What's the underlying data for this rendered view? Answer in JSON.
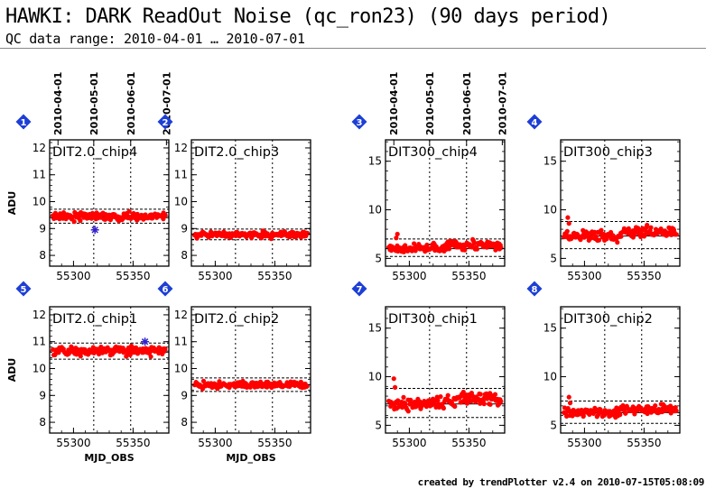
{
  "header": {
    "title": "HAWKI: DARK ReadOut Noise (qc_ron23) (90 days period)",
    "range": "QC data range: 2010-04-01 … 2010-07-01"
  },
  "credit": "created by trendPlotter v2.4 on 2010-07-15T05:08:09",
  "colors": {
    "points": "#ff0000",
    "outlier": "#3322cc",
    "badge": "#1d3fd6",
    "ref_line": "#000000"
  },
  "icons": {
    "badge": "diamond-number-icon",
    "outlier": "asterisk-marker-icon"
  },
  "chart_data": [
    {
      "type": "scatter",
      "panel": 1,
      "title": "DIT2.0_chip4",
      "xlabel": "",
      "ylabel": "ADU",
      "xlim": [
        55280,
        55380
      ],
      "ylim": [
        7.6,
        12.3
      ],
      "yticks": [
        8,
        9,
        10,
        11,
        12
      ],
      "xticks": [
        55300,
        55350
      ],
      "date_ticks": [
        "2010-04-01",
        "2010-05-01",
        "2010-06-01",
        "2010-07-01"
      ],
      "date_tick_mjd": [
        55287,
        55317,
        55348,
        55378
      ],
      "median": 9.45,
      "band": [
        9.2,
        9.72
      ],
      "noise": 0.1,
      "jumps": [],
      "extremes": [],
      "outliers": [
        {
          "x": 55318,
          "y": 8.95
        }
      ]
    },
    {
      "type": "scatter",
      "panel": 2,
      "title": "DIT2.0_chip3",
      "xlabel": "",
      "ylabel": "",
      "xlim": [
        55280,
        55380
      ],
      "ylim": [
        7.6,
        12.3
      ],
      "yticks": [
        8,
        9,
        10,
        11,
        12
      ],
      "xticks": [
        55300,
        55350
      ],
      "date_ticks": [],
      "date_tick_mjd": [],
      "median": 8.78,
      "band": [
        8.58,
        8.98
      ],
      "noise": 0.07,
      "jumps": [],
      "extremes": [],
      "outliers": []
    },
    {
      "type": "scatter",
      "panel": 3,
      "title": "DIT300_chip4",
      "xlabel": "",
      "ylabel": "",
      "xlim": [
        55280,
        55380
      ],
      "ylim": [
        4.2,
        17.2
      ],
      "yticks": [
        5,
        10,
        15
      ],
      "xticks": [
        55300,
        55350
      ],
      "date_ticks": [
        "2010-04-01",
        "2010-05-01",
        "2010-06-01",
        "2010-07-01"
      ],
      "date_tick_mjd": [
        55287,
        55317,
        55348,
        55378
      ],
      "median": 6.0,
      "band": [
        5.2,
        7.0
      ],
      "noise": 0.3,
      "jumps": [
        {
          "from": 55330,
          "delta": 0.35
        }
      ],
      "extremes": [
        {
          "x": 55290,
          "y": 7.5
        },
        {
          "x": 55289,
          "y": 7.1
        }
      ],
      "outliers": []
    },
    {
      "type": "scatter",
      "panel": 4,
      "title": "DIT300_chip3",
      "xlabel": "",
      "ylabel": "",
      "xlim": [
        55280,
        55380
      ],
      "ylim": [
        4.2,
        17.2
      ],
      "yticks": [
        5,
        10,
        15
      ],
      "xticks": [
        55300,
        55350
      ],
      "date_ticks": [],
      "date_tick_mjd": [],
      "median": 7.3,
      "band": [
        6.0,
        8.8
      ],
      "noise": 0.35,
      "jumps": [
        {
          "from": 55330,
          "delta": 0.45
        }
      ],
      "extremes": [
        {
          "x": 55286,
          "y": 9.2
        },
        {
          "x": 55287,
          "y": 8.6
        }
      ],
      "outliers": []
    },
    {
      "type": "scatter",
      "panel": 5,
      "title": "DIT2.0_chip1",
      "xlabel": "MJD_OBS",
      "ylabel": "ADU",
      "xlim": [
        55280,
        55380
      ],
      "ylim": [
        7.6,
        12.3
      ],
      "yticks": [
        8,
        9,
        10,
        11,
        12
      ],
      "xticks": [
        55300,
        55350
      ],
      "date_ticks": [],
      "date_tick_mjd": [],
      "median": 10.65,
      "band": [
        10.35,
        10.95
      ],
      "noise": 0.1,
      "jumps": [],
      "extremes": [],
      "outliers": [
        {
          "x": 55360,
          "y": 11.0
        }
      ]
    },
    {
      "type": "scatter",
      "panel": 6,
      "title": "DIT2.0_chip2",
      "xlabel": "MJD_OBS",
      "ylabel": "",
      "xlim": [
        55280,
        55380
      ],
      "ylim": [
        7.6,
        12.3
      ],
      "yticks": [
        8,
        9,
        10,
        11,
        12
      ],
      "xticks": [
        55300,
        55350
      ],
      "date_ticks": [],
      "date_tick_mjd": [],
      "median": 9.4,
      "band": [
        9.15,
        9.65
      ],
      "noise": 0.08,
      "jumps": [],
      "extremes": [],
      "outliers": []
    },
    {
      "type": "scatter",
      "panel": 7,
      "title": "DIT300_chip1",
      "xlabel": "",
      "ylabel": "",
      "xlim": [
        55280,
        55380
      ],
      "ylim": [
        4.2,
        17.2
      ],
      "yticks": [
        5,
        10,
        15
      ],
      "xticks": [
        55300,
        55350
      ],
      "date_ticks": [],
      "date_tick_mjd": [],
      "median": 7.2,
      "band": [
        5.8,
        8.8
      ],
      "noise": 0.4,
      "jumps": [
        {
          "from": 55330,
          "delta": 0.5
        }
      ],
      "extremes": [
        {
          "x": 55287,
          "y": 9.8
        },
        {
          "x": 55288,
          "y": 8.9
        }
      ],
      "outliers": []
    },
    {
      "type": "scatter",
      "panel": 8,
      "title": "DIT300_chip2",
      "xlabel": "",
      "ylabel": "",
      "xlim": [
        55280,
        55380
      ],
      "ylim": [
        4.2,
        17.2
      ],
      "yticks": [
        5,
        10,
        15
      ],
      "xticks": [
        55300,
        55350
      ],
      "date_ticks": [],
      "date_tick_mjd": [],
      "median": 6.3,
      "band": [
        5.2,
        7.5
      ],
      "noise": 0.3,
      "jumps": [
        {
          "from": 55330,
          "delta": 0.35
        }
      ],
      "extremes": [
        {
          "x": 55287,
          "y": 7.9
        },
        {
          "x": 55288,
          "y": 7.3
        }
      ],
      "outliers": []
    }
  ]
}
